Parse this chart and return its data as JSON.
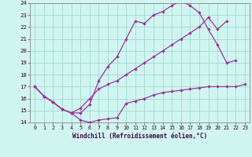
{
  "xlabel": "Windchill (Refroidissement éolien,°C)",
  "bg_color": "#d0f5f0",
  "grid_color": "#a0d8d0",
  "line_color": "#993399",
  "xlim": [
    -0.5,
    23.5
  ],
  "ylim": [
    14,
    24
  ],
  "xticks": [
    0,
    1,
    2,
    3,
    4,
    5,
    6,
    7,
    8,
    9,
    10,
    11,
    12,
    13,
    14,
    15,
    16,
    17,
    18,
    19,
    20,
    21,
    22,
    23
  ],
  "yticks": [
    14,
    15,
    16,
    17,
    18,
    19,
    20,
    21,
    22,
    23,
    24
  ],
  "line1_x": [
    0,
    1,
    2,
    3,
    4,
    5,
    6,
    7,
    8,
    9,
    10,
    11,
    12,
    13,
    14,
    15,
    16,
    17,
    18,
    19,
    20,
    21,
    22,
    23
  ],
  "line1_y": [
    17.0,
    16.2,
    15.7,
    15.1,
    14.8,
    14.2,
    14.0,
    14.2,
    14.3,
    14.4,
    15.6,
    15.8,
    16.0,
    16.3,
    16.5,
    16.6,
    16.7,
    16.8,
    16.9,
    17.0,
    17.0,
    17.0,
    17.0,
    17.2
  ],
  "line2_x": [
    0,
    1,
    2,
    3,
    4,
    5,
    6,
    7,
    8,
    9,
    10,
    11,
    12,
    13,
    14,
    15,
    16,
    17,
    18,
    19,
    20,
    21,
    22
  ],
  "line2_y": [
    17.0,
    16.2,
    15.7,
    15.1,
    14.8,
    14.8,
    15.5,
    17.5,
    18.7,
    19.5,
    21.0,
    22.5,
    22.3,
    23.0,
    23.3,
    23.8,
    24.2,
    23.8,
    23.2,
    21.8,
    20.5,
    19.0,
    19.2
  ],
  "line3_x": [
    0,
    1,
    2,
    3,
    4,
    5,
    6,
    7,
    8,
    9,
    10,
    11,
    12,
    13,
    14,
    15,
    16,
    17,
    18,
    19,
    20,
    21
  ],
  "line3_y": [
    17.0,
    16.2,
    15.7,
    15.1,
    14.8,
    15.2,
    16.0,
    16.8,
    17.2,
    17.5,
    18.0,
    18.5,
    19.0,
    19.5,
    20.0,
    20.5,
    21.0,
    21.5,
    22.0,
    22.8,
    21.8,
    22.5
  ]
}
